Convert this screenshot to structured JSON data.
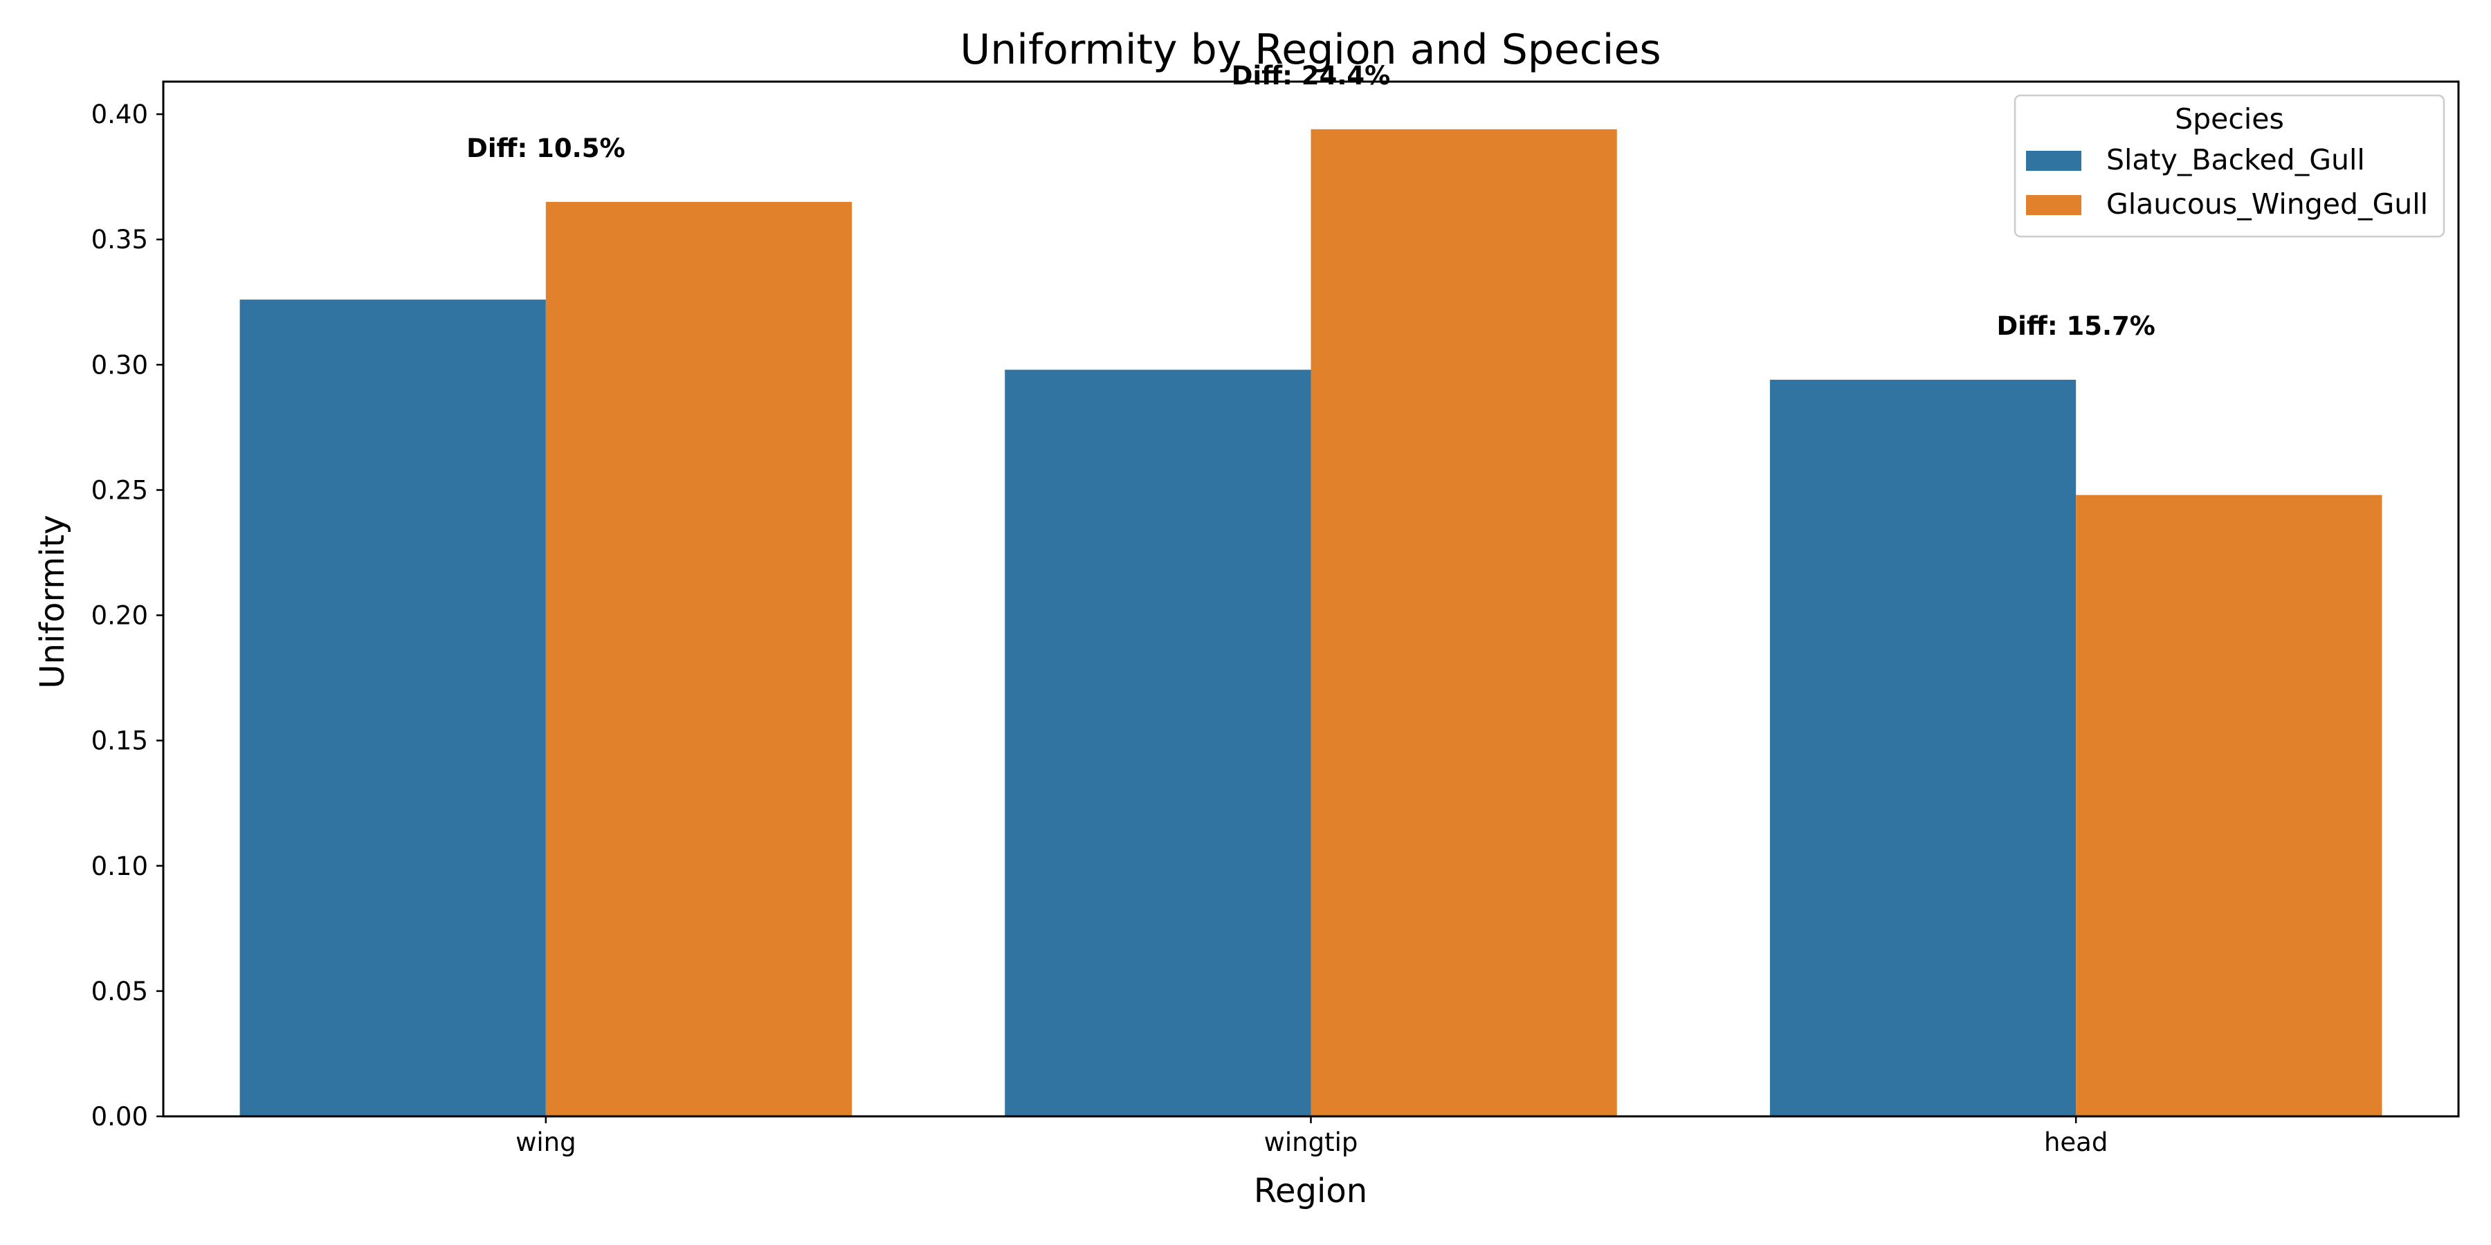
{
  "chart_data": {
    "type": "bar",
    "title": "Uniformity by Region and Species",
    "xlabel": "Region",
    "ylabel": "Uniformity",
    "categories": [
      "wing",
      "wingtip",
      "head"
    ],
    "series": [
      {
        "name": "Slaty_Backed_Gull",
        "color": "#3274a1",
        "values": [
          0.326,
          0.298,
          0.294
        ]
      },
      {
        "name": "Glaucous_Winged_Gull",
        "color": "#e1812c",
        "values": [
          0.365,
          0.394,
          0.248
        ]
      }
    ],
    "ylim": [
      0,
      0.413
    ],
    "yticks": [
      "0.00",
      "0.05",
      "0.10",
      "0.15",
      "0.20",
      "0.25",
      "0.30",
      "0.35",
      "0.40"
    ],
    "annotations": [
      "Diff: 10.5%",
      "Diff: 24.4%",
      "Diff: 15.7%"
    ],
    "legend": {
      "title": "Species",
      "position": "upper right"
    },
    "grid": false
  }
}
